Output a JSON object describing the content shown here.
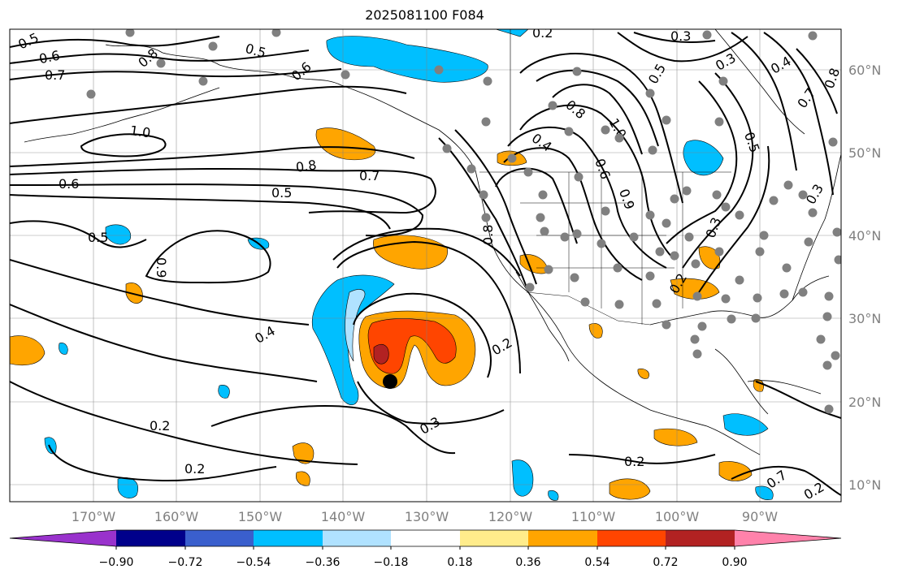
{
  "title": "2025081100 F084",
  "map": {
    "lon_labels": [
      "170°W",
      "160°W",
      "150°W",
      "140°W",
      "130°W",
      "120°W",
      "110°W",
      "100°W",
      "90°W"
    ],
    "lat_labels": [
      "10°N",
      "20°N",
      "30°N",
      "40°N",
      "50°N",
      "60°N"
    ],
    "gridlines": true,
    "contour_labels": [
      "0.5",
      "0.6",
      "0.7",
      "0.8",
      "0.5",
      "0.6",
      "0.2",
      "0.3",
      "0.3",
      "0.4",
      "0.7",
      "0.8",
      "1.0",
      "0.8",
      "0.7",
      "0.6",
      "0.5",
      "0.5",
      "0.9",
      "0.4",
      "0.2",
      "0.3",
      "0.2",
      "0.2",
      "0.8",
      "0.4",
      "1.0",
      "0.6",
      "0.9",
      "0.3",
      "0.8",
      "0.5",
      "0.2",
      "0.2",
      "0.7",
      "0.2",
      "0.5",
      "0.3"
    ],
    "marker_color": "#000000",
    "station_color": "#808080"
  },
  "colorbar": {
    "ticks": [
      "−0.90",
      "−0.72",
      "−0.54",
      "−0.36",
      "−0.18",
      "0.18",
      "0.36",
      "0.54",
      "0.72",
      "0.90"
    ],
    "colors": [
      "#9932cc",
      "#00008b",
      "#3a5fcd",
      "#00bfff",
      "#b0e2ff",
      "#ffffff",
      "#ffec8b",
      "#ffa500",
      "#ff4500",
      "#b22222",
      "#ff82ab"
    ],
    "extend": "both"
  }
}
